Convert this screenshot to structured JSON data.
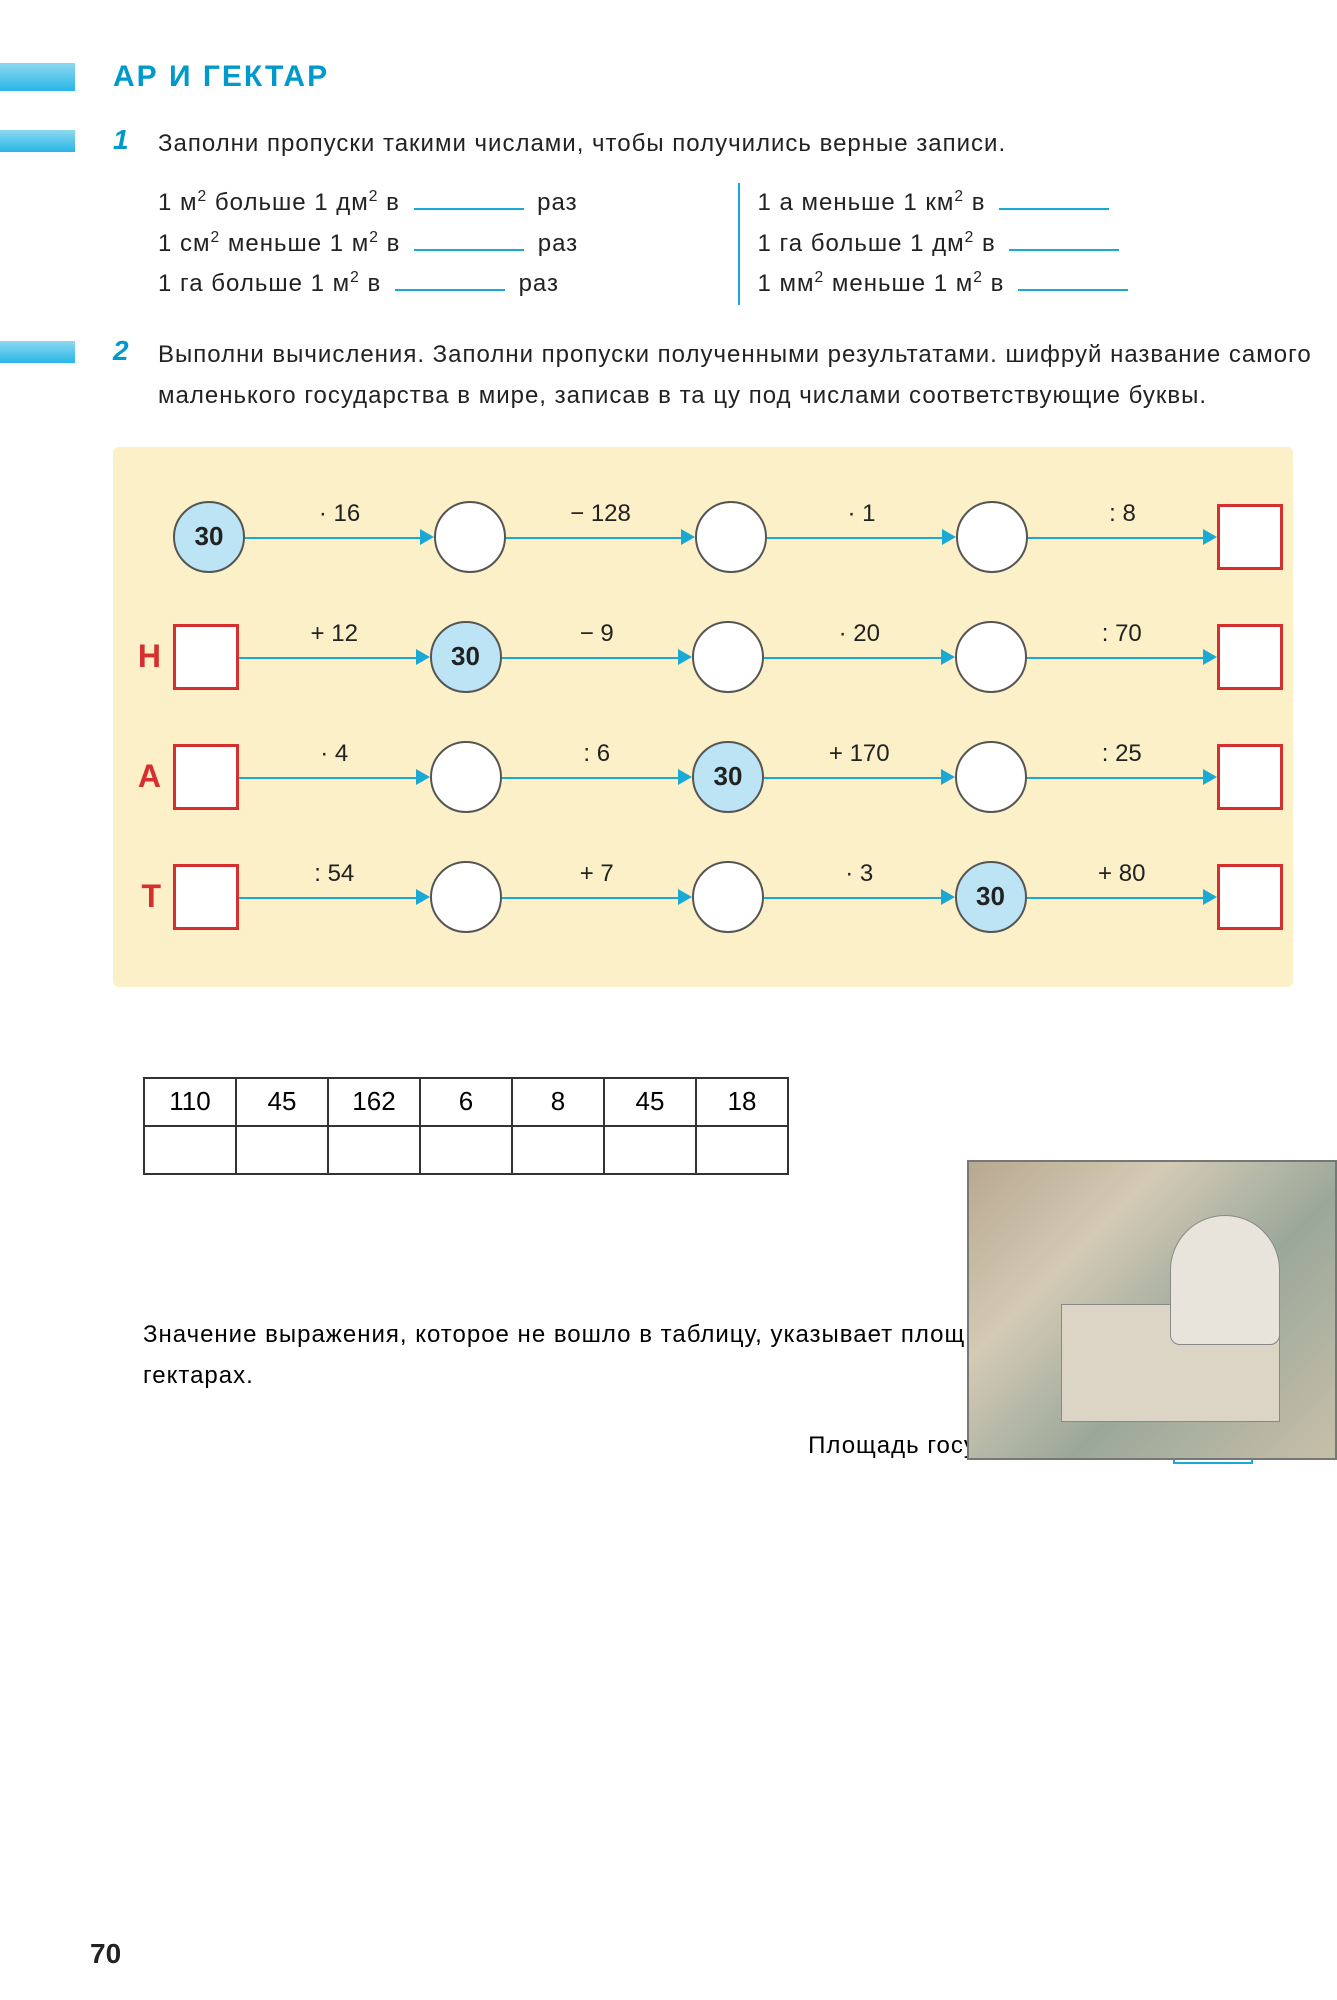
{
  "title": "АР  И  ГЕКТАР",
  "pageNumber": "70",
  "task1": {
    "num": "1",
    "text": "Заполни  пропуски  такими  числами,  чтобы  получились  верные  записи.",
    "left": [
      {
        "pre": "1 м",
        "sup1": "2",
        "mid1": " больше 1 дм",
        "sup2": "2",
        "mid2": " в ",
        "post": " раз"
      },
      {
        "pre": "1 см",
        "sup1": "2",
        "mid1": " меньше 1 м",
        "sup2": "2",
        "mid2": " в ",
        "post": " раз"
      },
      {
        "pre": "1 га больше 1 м",
        "sup1": "2",
        "mid1": "",
        "sup2": "",
        "mid2": " в ",
        "post": " раз"
      }
    ],
    "right": [
      {
        "pre": "1 а меньше 1 км",
        "sup1": "2",
        "mid2": " в ",
        "post": ""
      },
      {
        "pre": "1 га больше 1 дм",
        "sup1": "2",
        "mid2": " в ",
        "post": ""
      },
      {
        "pre": "1 мм",
        "sup1": "2",
        "mid1": " меньше 1 м",
        "sup2": "2",
        "mid2": " в ",
        "post": ""
      }
    ]
  },
  "task2": {
    "num": "2",
    "text": "Выполни  вычисления.  Заполни  пропуски  полученными  результатами.  шифруй  название  самого  маленького  государства  в  мире,  записав  в  та цу  под  числами  соответствующие  буквы.",
    "rows": [
      {
        "label": "",
        "nodes": [
          "circle-start:30",
          "circle",
          "circle",
          "circle",
          "square"
        ],
        "ops": [
          "· 16",
          "− 128",
          "· 1",
          ": 8"
        ]
      },
      {
        "label": "Н",
        "nodes": [
          "square",
          "circle-start:30",
          "circle",
          "circle",
          "square"
        ],
        "ops": [
          "+ 12",
          "− 9",
          "· 20",
          ": 70"
        ]
      },
      {
        "label": "А",
        "nodes": [
          "square",
          "circle",
          "circle-start:30",
          "circle",
          "square"
        ],
        "ops": [
          "· 4",
          ": 6",
          "+ 170",
          ": 25"
        ]
      },
      {
        "label": "Т",
        "nodes": [
          "square",
          "circle",
          "circle",
          "circle-start:30",
          "square"
        ],
        "ops": [
          ": 54",
          "+ 7",
          "· 3",
          "+ 80"
        ]
      }
    ]
  },
  "answerTable": [
    "110",
    "45",
    "162",
    "6",
    "8",
    "45",
    "18"
  ],
  "footer": {
    "text": "Значение  выражения,  которое  не  вошло  в  таблицу,  указывает  площ этого  государства  в  гектарах.",
    "resultLabel": "Площадь  государства  равна"
  },
  "colors": {
    "accent": "#1aa8d4",
    "titleColor": "#0099cc",
    "red": "#d62f2f",
    "chainBg": "#fbf0c8",
    "circleStartBg": "#bce4f5"
  }
}
